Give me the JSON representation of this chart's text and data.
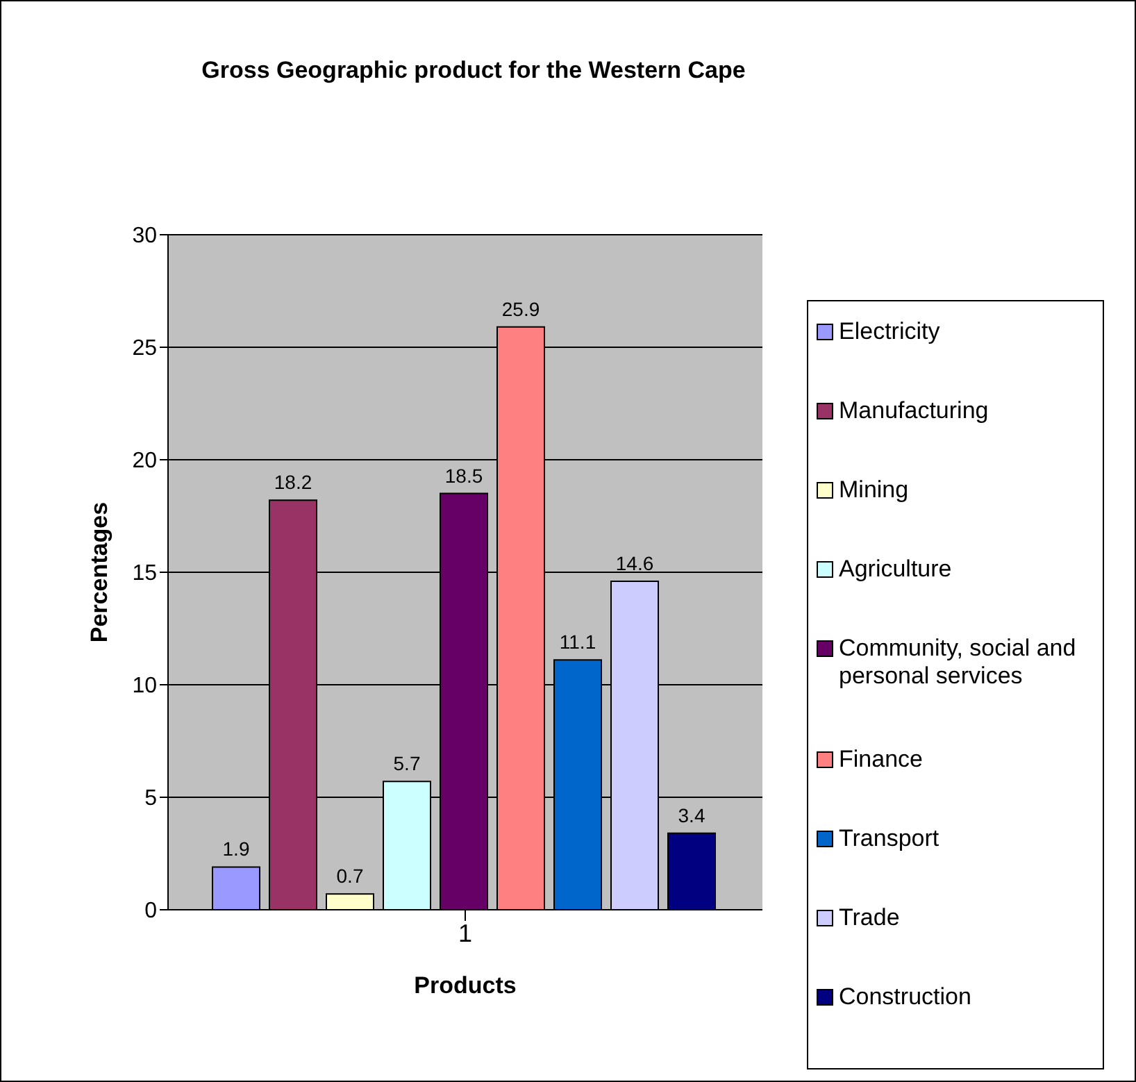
{
  "chart_data": {
    "type": "bar",
    "title": "Gross Geographic product for the Western Cape",
    "xlabel": "Products",
    "ylabel": "Percentages",
    "categories": [
      "1"
    ],
    "series": [
      {
        "name": "Electricity",
        "color": "#9999ff",
        "values": [
          1.9
        ]
      },
      {
        "name": "Manufacturing",
        "color": "#993366",
        "values": [
          18.2
        ]
      },
      {
        "name": "Mining",
        "color": "#ffffcc",
        "values": [
          0.7
        ]
      },
      {
        "name": "Agriculture",
        "color": "#ccffff",
        "values": [
          5.7
        ]
      },
      {
        "name": "Community, social and personal services",
        "color": "#660066",
        "values": [
          18.5
        ]
      },
      {
        "name": "Finance",
        "color": "#ff8080",
        "values": [
          25.9
        ]
      },
      {
        "name": "Transport",
        "color": "#0066cc",
        "values": [
          11.1
        ]
      },
      {
        "name": "Trade",
        "color": "#ccccff",
        "values": [
          14.6
        ]
      },
      {
        "name": "Construction",
        "color": "#000080",
        "values": [
          3.4
        ]
      }
    ],
    "ylim": [
      0,
      30
    ],
    "yticks": [
      0,
      5,
      10,
      15,
      20,
      25,
      30
    ],
    "grid": "y",
    "legend": "right",
    "data_labels": true
  }
}
